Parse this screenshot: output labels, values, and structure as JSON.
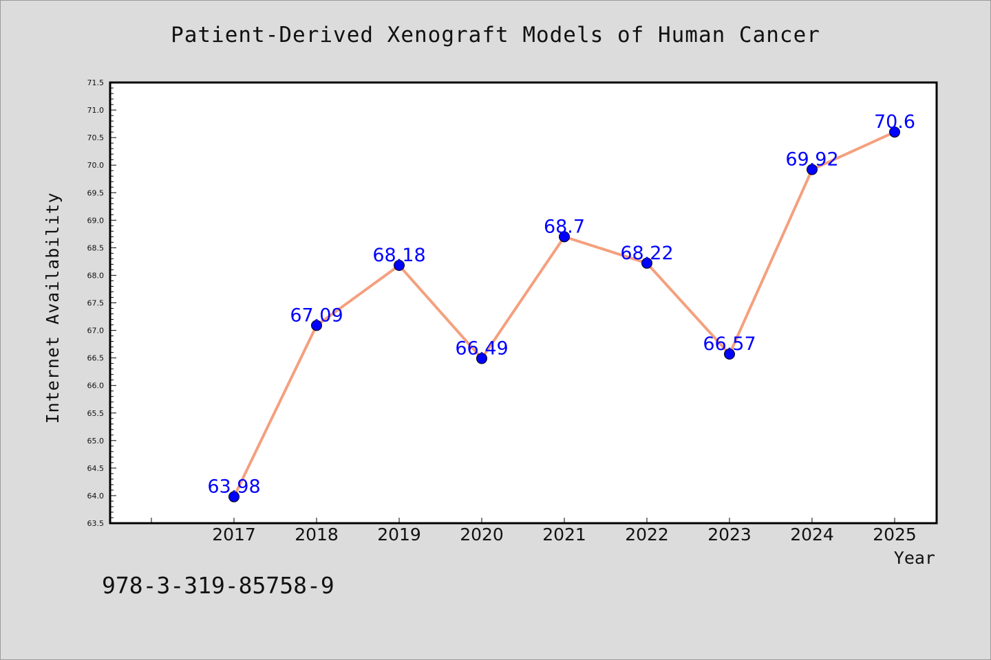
{
  "page": {
    "background_color": "#dcdcdc",
    "footnote": "978-3-319-85758-9"
  },
  "chart_data": {
    "type": "line",
    "title": "Patient-Derived Xenograft Models of Human Cancer",
    "xlabel": "Year",
    "ylabel": "Internet Availability",
    "categories": [
      "2017",
      "2018",
      "2019",
      "2020",
      "2021",
      "2022",
      "2023",
      "2024",
      "2025"
    ],
    "series": [
      {
        "values": [
          63.98,
          67.09,
          68.18,
          66.49,
          68.7,
          68.22,
          66.57,
          69.92,
          70.6
        ],
        "data_labels": [
          "63.98",
          "67.09",
          "68.18",
          "66.49",
          "68.7",
          "68.22",
          "66.57",
          "69.92",
          "70.6"
        ],
        "line_color": "#f4a07e",
        "marker_color": "#0000ff"
      }
    ],
    "ylim": [
      63.5,
      71.5
    ],
    "yticks": [
      "63.5",
      "64.0",
      "64.5",
      "65.0",
      "65.5",
      "66.0",
      "66.5",
      "67.0",
      "67.5",
      "68.0",
      "68.5",
      "69.0",
      "69.5",
      "70.0",
      "70.5",
      "71.0",
      "71.5"
    ],
    "label_color": "#0000ff",
    "grid": false,
    "legend": false
  }
}
